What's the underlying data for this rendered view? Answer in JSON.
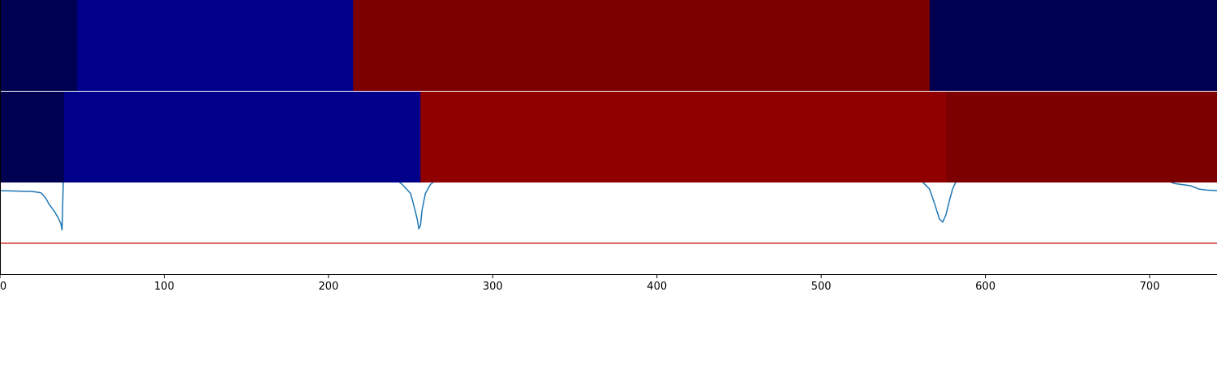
{
  "chart_data": {
    "type": "line",
    "title": "",
    "xlabel": "",
    "ylabel": "",
    "xlim": [
      0,
      741
    ],
    "x_ticks": [
      0,
      100,
      200,
      300,
      400,
      500,
      600,
      700
    ],
    "x_tick_labels": [
      "0",
      "100",
      "200",
      "300",
      "400",
      "500",
      "600",
      "700"
    ],
    "grid": false,
    "legend": "none",
    "segment_bands": [
      {
        "name": "",
        "segments": [
          {
            "x0": 0,
            "x1": 47,
            "color": "#000050"
          },
          {
            "x0": 47,
            "x1": 215,
            "color": "#00008a"
          },
          {
            "x0": 215,
            "x1": 566,
            "color": "#7c0000"
          },
          {
            "x0": 566,
            "x1": 741,
            "color": "#000050"
          }
        ]
      },
      {
        "name": "",
        "segments": [
          {
            "x0": 0,
            "x1": 39,
            "color": "#000050"
          },
          {
            "x0": 39,
            "x1": 256,
            "color": "#00008a"
          },
          {
            "x0": 256,
            "x1": 576,
            "color": "#900000"
          },
          {
            "x0": 576,
            "x1": 741,
            "color": "#7c0000"
          }
        ]
      }
    ],
    "series": [
      {
        "name": "",
        "color": "#1f77b4",
        "points": [
          [
            0,
            -0.62
          ],
          [
            20,
            -0.66
          ],
          [
            25,
            -0.72
          ],
          [
            28,
            -0.98
          ],
          [
            30,
            -1.25
          ],
          [
            33,
            -1.55
          ],
          [
            35,
            -1.8
          ],
          [
            37,
            -2.1
          ],
          [
            37.8,
            -2.4
          ],
          [
            38.6,
            -0.05
          ],
          [
            42,
            0.05
          ],
          [
            60,
            0.1
          ],
          [
            100,
            0.1
          ],
          [
            200,
            0.1
          ],
          [
            230,
            0.08
          ],
          [
            240,
            -0.05
          ],
          [
            245,
            -0.35
          ],
          [
            250,
            -0.75
          ],
          [
            252,
            -1.3
          ],
          [
            254,
            -1.9
          ],
          [
            255,
            -2.35
          ],
          [
            256,
            -2.2
          ],
          [
            257,
            -1.5
          ],
          [
            259,
            -0.75
          ],
          [
            262,
            -0.35
          ],
          [
            266,
            -0.1
          ],
          [
            275,
            0.0
          ],
          [
            300,
            0.0
          ],
          [
            330,
            -0.02
          ],
          [
            360,
            -0.02
          ],
          [
            400,
            0.0
          ],
          [
            500,
            0.0
          ],
          [
            560,
            -0.1
          ],
          [
            566,
            -0.55
          ],
          [
            569,
            -1.2
          ],
          [
            572,
            -1.9
          ],
          [
            574,
            -2.05
          ],
          [
            576,
            -1.7
          ],
          [
            578,
            -1.1
          ],
          [
            580,
            -0.55
          ],
          [
            583,
            -0.05
          ],
          [
            590,
            0.06
          ],
          [
            620,
            0.06
          ],
          [
            650,
            0.06
          ],
          [
            676,
            0.06
          ],
          [
            678,
            -0.08
          ],
          [
            690,
            -0.08
          ],
          [
            700,
            -0.12
          ],
          [
            710,
            -0.15
          ],
          [
            715,
            -0.3
          ],
          [
            720,
            -0.35
          ],
          [
            725,
            -0.4
          ],
          [
            730,
            -0.55
          ],
          [
            735,
            -0.6
          ],
          [
            741,
            -0.62
          ]
        ]
      }
    ],
    "reference_lines": [
      {
        "orientation": "horizontal",
        "y": -3.0,
        "color": "#d62728"
      }
    ]
  }
}
